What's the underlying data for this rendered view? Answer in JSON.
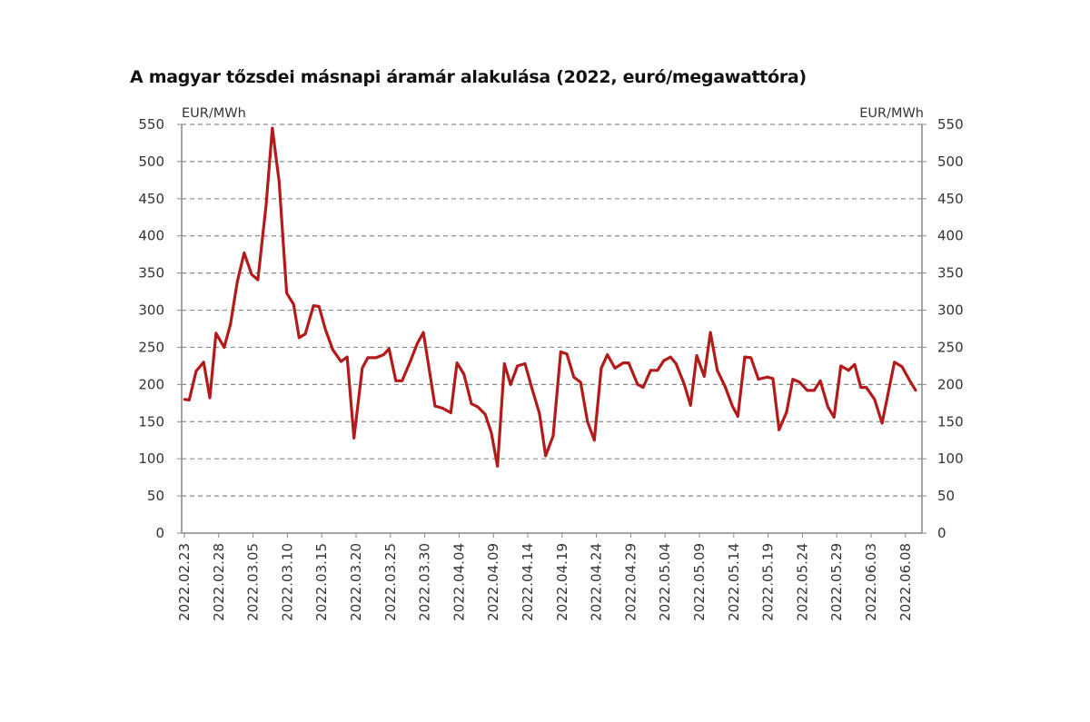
{
  "chart_data": {
    "type": "line",
    "title": "A magyar tőzsdei másnapi áramár alakulása (2022, euró/megawattóra)",
    "ylabel_left": "EUR/MWh",
    "ylabel_right": "EUR/MWh",
    "ylim": [
      0,
      550
    ],
    "yticks": [
      0,
      50,
      100,
      150,
      200,
      250,
      300,
      350,
      400,
      450,
      500,
      550
    ],
    "grid": true,
    "x_unit": "days since 2022.02.23",
    "xtick_labels": [
      "2022.02.23",
      "2022.02.28",
      "2022.03.05",
      "2022.03.10",
      "2022.03.15",
      "2022.03.20",
      "2022.03.25",
      "2022.03.30",
      "2022.04.04",
      "2022.04.09",
      "2022.04.14",
      "2022.04.19",
      "2022.04.24",
      "2022.04.29",
      "2022.05.04",
      "2022.05.09",
      "2022.05.14",
      "2022.05.19",
      "2022.05.24",
      "2022.05.29",
      "2022.06.03",
      "2022.06.08"
    ],
    "xtick_step_days": 5,
    "color": "#b31b1b",
    "series": [
      {
        "name": "Másnapi áramár",
        "x": [
          0,
          0.7,
          1.7,
          2.8,
          3.7,
          4.6,
          5.8,
          6.7,
          7.7,
          8.7,
          9.8,
          10.7,
          11.9,
          12.8,
          13.8,
          14.9,
          15.9,
          16.7,
          17.6,
          18.8,
          19.6,
          20.5,
          21.6,
          22.8,
          23.7,
          24.7,
          25.9,
          26.7,
          27.9,
          29.0,
          29.8,
          30.8,
          31.7,
          32.9,
          33.9,
          34.8,
          36.5,
          37.6,
          38.8,
          39.7,
          40.7,
          41.8,
          42.7,
          43.8,
          44.7,
          45.6,
          46.6,
          47.5,
          48.5,
          49.6,
          50.7,
          51.7,
          52.6,
          53.7,
          54.8,
          55.7,
          56.7,
          57.7,
          58.7,
          59.7,
          60.7,
          61.6,
          62.7,
          63.9,
          64.7,
          66.0,
          66.8,
          67.9,
          68.9,
          69.8,
          70.8,
          71.6,
          72.8,
          73.7,
          74.6,
          75.7,
          76.6,
          77.6,
          78.7,
          79.8,
          80.6,
          81.6,
          82.5,
          83.6,
          84.9,
          85.7,
          86.6,
          87.7,
          88.6,
          89.6,
          90.7,
          91.7,
          92.6,
          93.7,
          94.6,
          95.6,
          96.7,
          97.6,
          98.5,
          99.3,
          100.5,
          101.6,
          103.4,
          104.5,
          105.7,
          106.5
        ],
        "values": [
          180,
          179,
          218,
          230,
          182,
          269,
          250,
          281,
          338,
          377,
          348,
          341,
          442,
          545,
          473,
          323,
          308,
          263,
          268,
          306,
          305,
          275,
          247,
          231,
          237,
          128,
          222,
          236,
          236,
          240,
          248,
          205,
          205,
          231,
          255,
          270,
          171,
          168,
          162,
          229,
          214,
          174,
          170,
          160,
          135,
          90,
          228,
          200,
          225,
          228,
          192,
          161,
          104,
          131,
          244,
          241,
          210,
          203,
          150,
          125,
          222,
          240,
          222,
          229,
          229,
          200,
          196,
          219,
          219,
          232,
          237,
          228,
          200,
          172,
          239,
          211,
          270,
          219,
          198,
          171,
          157,
          237,
          236,
          207,
          210,
          208,
          139,
          163,
          207,
          203,
          192,
          192,
          205,
          170,
          156,
          225,
          219,
          227,
          196,
          196,
          180,
          148,
          230,
          224,
          204,
          192
        ]
      }
    ]
  }
}
